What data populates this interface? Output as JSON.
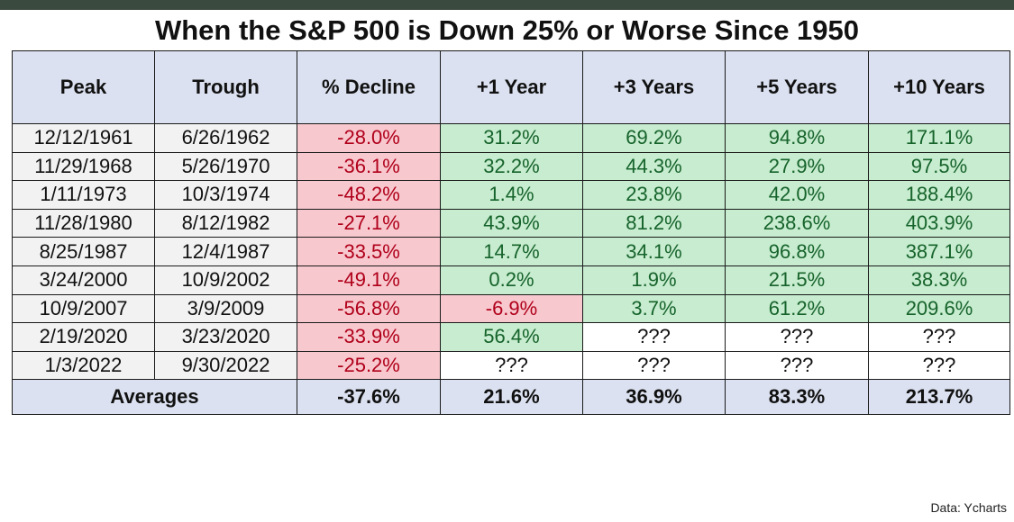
{
  "title": "When the S&P 500 is Down 25% or Worse Since 1950",
  "source": "Data: Ycharts",
  "colors": {
    "header_bg": "#dbe1f0",
    "negative_bg": "#f7c8ce",
    "negative_text": "#b0001a",
    "positive_bg": "#c7eccf",
    "positive_text": "#16632b",
    "date_bg": "#f2f2f2"
  },
  "chart_data": {
    "type": "table",
    "title": "When the S&P 500 is Down 25% or Worse Since 1950",
    "columns": [
      "Peak",
      "Trough",
      "% Decline",
      "+1 Year",
      "+3 Years",
      "+5 Years",
      "+10 Years"
    ],
    "rows": [
      [
        "12/12/1961",
        "6/26/1962",
        "-28.0%",
        "31.2%",
        "69.2%",
        "94.8%",
        "171.1%"
      ],
      [
        "11/29/1968",
        "5/26/1970",
        "-36.1%",
        "32.2%",
        "44.3%",
        "27.9%",
        "97.5%"
      ],
      [
        "1/11/1973",
        "10/3/1974",
        "-48.2%",
        "1.4%",
        "23.8%",
        "42.0%",
        "188.4%"
      ],
      [
        "11/28/1980",
        "8/12/1982",
        "-27.1%",
        "43.9%",
        "81.2%",
        "238.6%",
        "403.9%"
      ],
      [
        "8/25/1987",
        "12/4/1987",
        "-33.5%",
        "14.7%",
        "34.1%",
        "96.8%",
        "387.1%"
      ],
      [
        "3/24/2000",
        "10/9/2002",
        "-49.1%",
        "0.2%",
        "1.9%",
        "21.5%",
        "38.3%"
      ],
      [
        "10/9/2007",
        "3/9/2009",
        "-56.8%",
        "-6.9%",
        "3.7%",
        "61.2%",
        "209.6%"
      ],
      [
        "2/19/2020",
        "3/23/2020",
        "-33.9%",
        "56.4%",
        "???",
        "???",
        "???"
      ],
      [
        "1/3/2022",
        "9/30/2022",
        "-25.2%",
        "???",
        "???",
        "???",
        "???"
      ]
    ],
    "averages": {
      "label": "Averages",
      "values": [
        "-37.6%",
        "21.6%",
        "36.9%",
        "83.3%",
        "213.7%"
      ]
    }
  }
}
